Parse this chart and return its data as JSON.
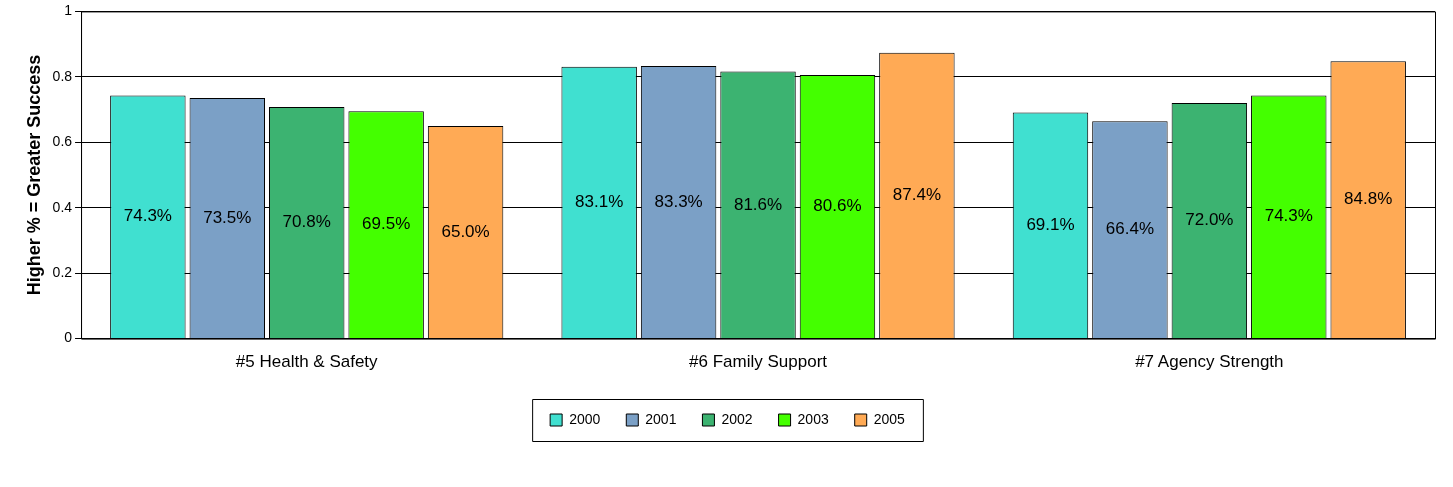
{
  "chart_data": {
    "type": "bar",
    "ylabel": "Higher % = Greater Success",
    "categories": [
      "#5 Health & Safety",
      "#6 Family Support",
      "#7 Agency Strength"
    ],
    "series": [
      {
        "name": "2000",
        "color": "#40e0d0",
        "values": [
          0.743,
          0.831,
          0.691
        ],
        "value_labels": [
          "74.3%",
          "83.1%",
          "69.1%"
        ]
      },
      {
        "name": "2001",
        "color": "#7ba0c6",
        "values": [
          0.735,
          0.833,
          0.664
        ],
        "value_labels": [
          "73.5%",
          "83.3%",
          "66.4%"
        ]
      },
      {
        "name": "2002",
        "color": "#3cb371",
        "values": [
          0.708,
          0.816,
          0.72
        ],
        "value_labels": [
          "70.8%",
          "81.6%",
          "72.0%"
        ]
      },
      {
        "name": "2003",
        "color": "#44ff00",
        "values": [
          0.695,
          0.806,
          0.743
        ],
        "value_labels": [
          "69.5%",
          "80.6%",
          "74.3%"
        ]
      },
      {
        "name": "2005",
        "color": "#ffaa55",
        "values": [
          0.65,
          0.874,
          0.848
        ],
        "value_labels": [
          "65.0%",
          "87.4%",
          "84.8%"
        ]
      }
    ],
    "ylim": [
      0,
      1
    ],
    "yticks": [
      0,
      0.2,
      0.4,
      0.6,
      0.8,
      1
    ],
    "grid": "y",
    "legend": "bottom"
  }
}
